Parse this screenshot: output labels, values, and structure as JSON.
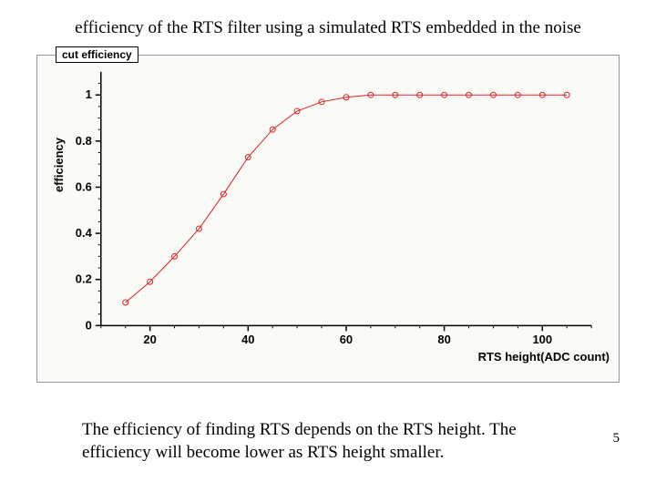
{
  "slide": {
    "title": "efficiency of the RTS filter using a simulated RTS embedded in the noise",
    "caption": "The efficiency of finding RTS depends on the RTS height.  The efficiency will become lower as RTS height smaller.",
    "page_number": "5"
  },
  "chart": {
    "type": "line",
    "label": "cut efficiency",
    "ylabel": "efficiency",
    "xlabel": "RTS height(ADC count)",
    "x_values": [
      15,
      20,
      25,
      30,
      35,
      40,
      45,
      50,
      55,
      60,
      65,
      70,
      75,
      80,
      85,
      90,
      95,
      100,
      105
    ],
    "y_values": [
      0.1,
      0.19,
      0.3,
      0.42,
      0.57,
      0.73,
      0.85,
      0.93,
      0.97,
      0.99,
      1.0,
      1.0,
      1.0,
      1.0,
      1.0,
      1.0,
      1.0,
      1.0,
      1.0
    ],
    "line_color": "#d22",
    "marker_color": "#d22",
    "marker_style": "circle",
    "marker_size": 3,
    "line_width": 1,
    "xlim": [
      10,
      110
    ],
    "ylim": [
      0,
      1.1
    ],
    "xticks": [
      20,
      40,
      60,
      80,
      100
    ],
    "yticks": [
      0,
      0.2,
      0.4,
      0.6,
      0.8,
      1
    ],
    "label_fontsize": 13,
    "label_fontweight": "bold",
    "title_fontsize": 12,
    "plot_background": "#fafaf7",
    "border_color": "#999999",
    "axis_color": "#000000",
    "tick_length": 6,
    "minor_ticks": true
  }
}
